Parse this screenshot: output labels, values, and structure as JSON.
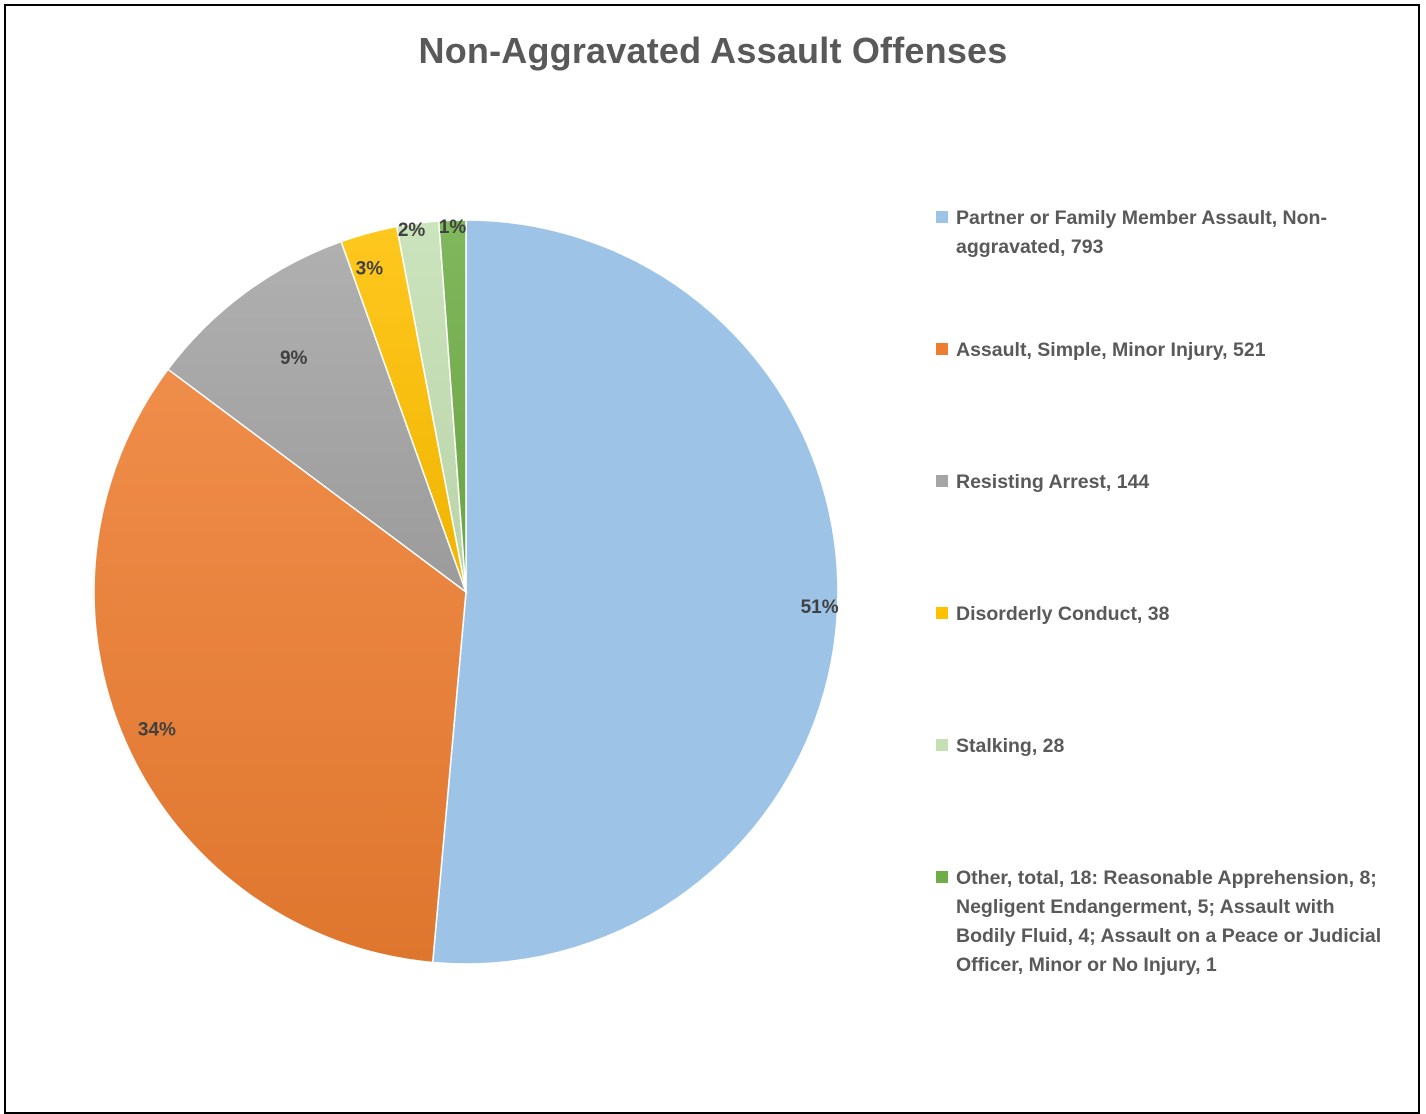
{
  "chart_data": {
    "type": "pie",
    "title": "Non-Aggravated Assault Offenses",
    "slices": [
      {
        "label": "Partner or Family Member Assault, Non-aggravated, 793",
        "value": 793,
        "pct_label": "51%",
        "color": "#9DC3E6"
      },
      {
        "label": "Assault, Simple, Minor Injury, 521",
        "value": 521,
        "pct_label": "34%",
        "color": "#ED7D31"
      },
      {
        "label": "Resisting Arrest, 144",
        "value": 144,
        "pct_label": "9%",
        "color": "#A5A5A5"
      },
      {
        "label": "Disorderly Conduct, 38",
        "value": 38,
        "pct_label": "3%",
        "color": "#FFC000"
      },
      {
        "label": "Stalking, 28",
        "value": 28,
        "pct_label": "2%",
        "color": "#C5E0B4"
      },
      {
        "label": "Other, total,  18: Reasonable Apprehension, 8; Negligent Endangerment, 5; Assault with Bodily Fluid, 4; Assault on a Peace or Judicial Officer, Minor or No Injury, 1",
        "value": 18,
        "pct_label": "1%",
        "color": "#70AD47"
      }
    ],
    "legend_position": "right"
  }
}
